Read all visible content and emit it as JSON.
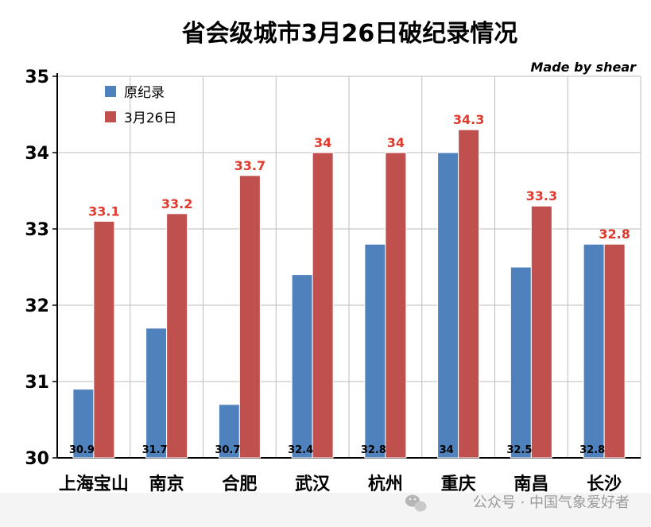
{
  "chart_data": {
    "type": "bar",
    "title": "省会级城市3月26日破纪录情况",
    "credit": "Made by shear",
    "categories": [
      "上海宝山",
      "南京",
      "合肥",
      "武汉",
      "杭州",
      "重庆",
      "南昌",
      "长沙"
    ],
    "series": [
      {
        "name": "原纪录",
        "color": "#4f81bd",
        "values": [
          30.9,
          31.7,
          30.7,
          32.4,
          32.8,
          34,
          32.5,
          32.8
        ]
      },
      {
        "name": "3月26日",
        "color": "#c0504d",
        "values": [
          33.1,
          33.2,
          33.7,
          34,
          34,
          34.3,
          33.3,
          32.8
        ]
      }
    ],
    "ylim": [
      30,
      35
    ],
    "yticks": [
      "30",
      "31",
      "32",
      "33",
      "34",
      "35"
    ],
    "grid": true,
    "legend": "top-left"
  },
  "watermark": "公众号 · 中国气象爱好者"
}
